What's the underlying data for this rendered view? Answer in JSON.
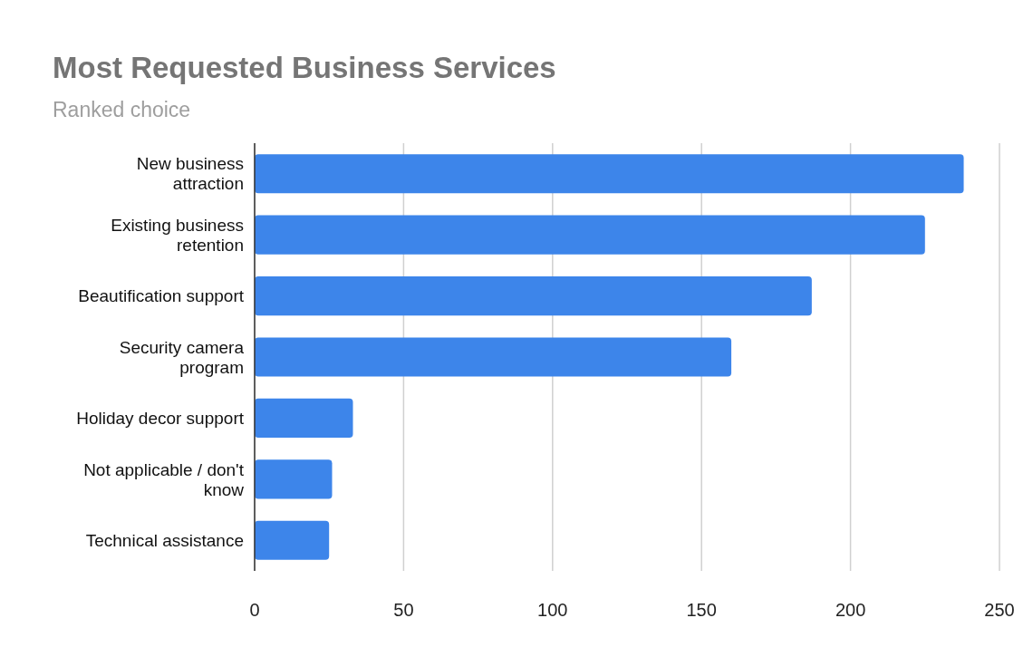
{
  "chart_data": {
    "type": "bar",
    "orientation": "horizontal",
    "title": "Most Requested Business Services",
    "subtitle": "Ranked choice",
    "categories": [
      "New business attraction",
      "Existing business retention",
      "Beautification support",
      "Security camera program",
      "Holiday decor support",
      "Not applicable / don't know",
      "Technical assistance"
    ],
    "values": [
      238,
      225,
      187,
      160,
      33,
      26,
      25
    ],
    "color": "#3d85ea",
    "xlim": [
      0,
      250
    ],
    "xticks": [
      0,
      50,
      100,
      150,
      200,
      250
    ],
    "grid": "x"
  }
}
